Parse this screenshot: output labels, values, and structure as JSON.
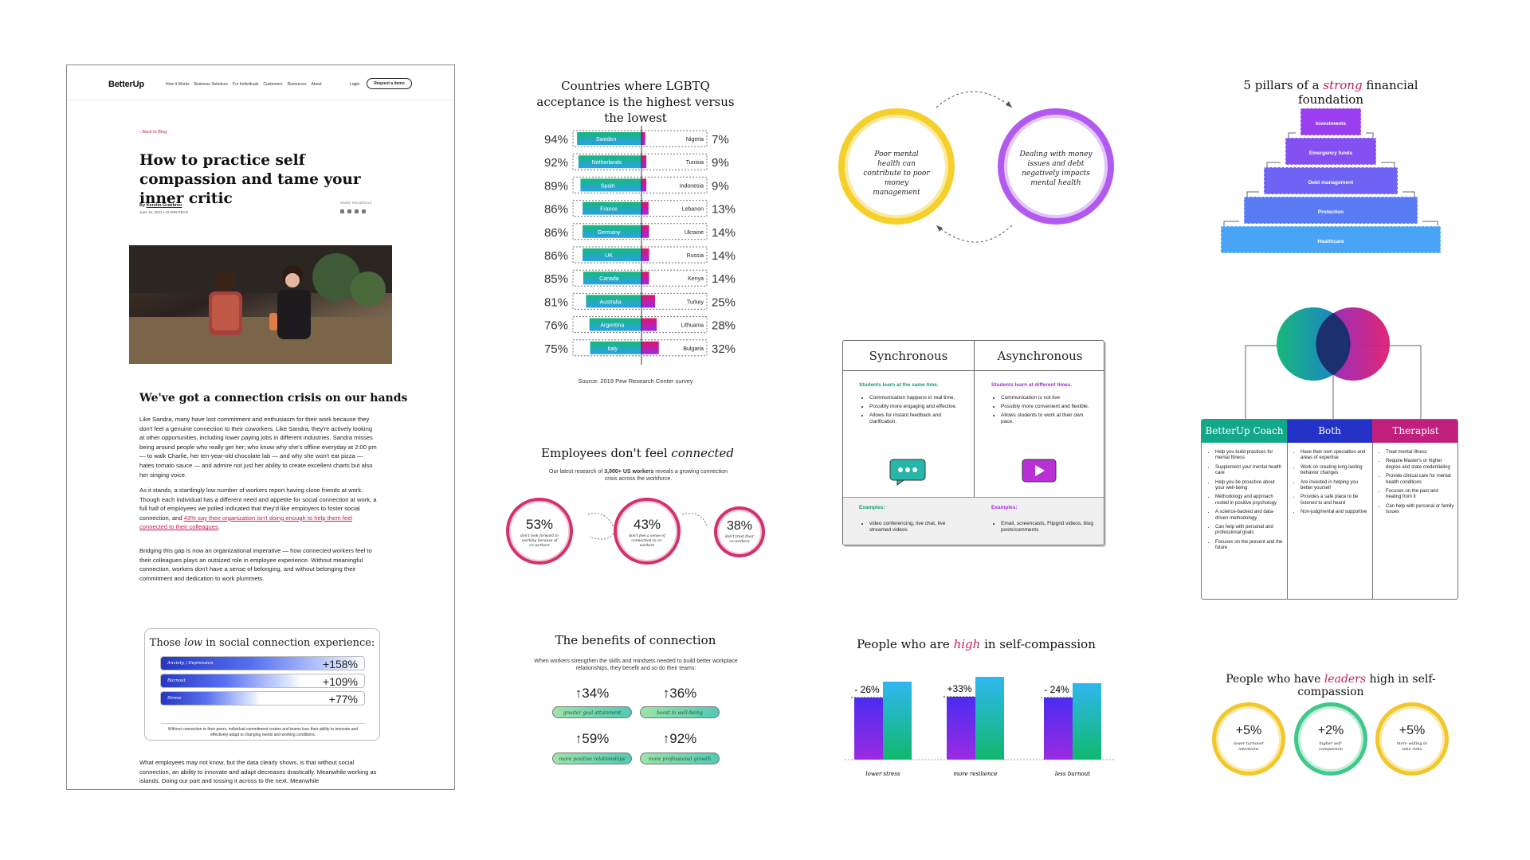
{
  "article": {
    "logo": "BetterUp",
    "nav": [
      "How It Works",
      "Business Solutions",
      "For Individuals",
      "Customers",
      "Resources",
      "About"
    ],
    "login": "Login",
    "demo_button": "Request a demo",
    "back_link": "Back to Blog",
    "title": "How to practice self compassion and tame your inner critic",
    "byline_prefix": "By",
    "author": "Kerstin Graebner",
    "date": "June 16, 2021 • 22 MIN READ",
    "share_label": "SHARE THIS ARTICLE",
    "heading": "We've got a connection crisis on our hands",
    "p1": "Like Sandra, many have lost commitment and enthusiasm for their work because they don't feel a genuine connection to their coworkers. Like Sandra, they're actively looking at other opportunities, including lower paying jobs in different industries. Sandra misses being around people who really get her; who know why she's offline everyday at 2:00 pm — to walk Charlie, her ten-year-old chocolate lab — and why she won't eat pizza — hates tomato sauce — and admire not just her ability to create excellent charts but also her singing voice.",
    "p2_pre": "As it stands, a startlingly low number of workers report having close friends at work. Though each individual has a different need and appetite for social connection at work, a full half of employees we polled indicated that they'd like employers to foster social connection, and ",
    "p2_link": "43% say their organization isn't doing enough to help them feel connected to their colleagues",
    "p2_post": ".",
    "p3": "Bridging this gap is now an organizational imperative — how connected workers feel to their colleagues plays an outsized role in employee experience. Without meaningful connection, workers don't have a sense of belonging, and without belonging their commitment and dedication to work plummets.",
    "callout": {
      "title_pre": "Those ",
      "title_em": "low",
      "title_post": " in social connection experience:",
      "rows": [
        {
          "label": "Anxiety / Depression",
          "value": "+158%",
          "level": 1.0
        },
        {
          "label": "Burnout",
          "value": "+109%",
          "level": 0.69
        },
        {
          "label": "Stress",
          "value": "+77%",
          "level": 0.49
        }
      ],
      "note": "Without connection to their peers, individual commitment craters and teams lose their ability to innovate and effectively adapt to changing needs and working conditions."
    },
    "p4": "What employees may not know, but the data clearly shows, is that without social connection, an ability to innovate and adapt decreases drastically. Meanwhile working as islands. Doing our part and tossing it across to the next. Meanwhile"
  },
  "lgbtq": {
    "title": "Countries where LGBTQ acceptance is the highest versus the lowest",
    "source": "Source: 2019 Pew Research Center survey",
    "rows": [
      {
        "high_country": "Sweden",
        "high": "94%",
        "high_value": 94,
        "low_country": "Nigeria",
        "low": "7%",
        "low_value": 7
      },
      {
        "high_country": "Netherlands",
        "high": "92%",
        "high_value": 92,
        "low_country": "Tunisia",
        "low": "9%",
        "low_value": 9
      },
      {
        "high_country": "Spain",
        "high": "89%",
        "high_value": 89,
        "low_country": "Indonesia",
        "low": "9%",
        "low_value": 9
      },
      {
        "high_country": "France",
        "high": "86%",
        "high_value": 86,
        "low_country": "Lebanon",
        "low": "13%",
        "low_value": 13
      },
      {
        "high_country": "Germany",
        "high": "86%",
        "high_value": 86,
        "low_country": "Ukraine",
        "low": "14%",
        "low_value": 14
      },
      {
        "high_country": "UK",
        "high": "86%",
        "high_value": 86,
        "low_country": "Russia",
        "low": "14%",
        "low_value": 14
      },
      {
        "high_country": "Canada",
        "high": "85%",
        "high_value": 85,
        "low_country": "Kenya",
        "low": "14%",
        "low_value": 14
      },
      {
        "high_country": "Australia",
        "high": "81%",
        "high_value": 81,
        "low_country": "Turkey",
        "low": "25%",
        "low_value": 25
      },
      {
        "high_country": "Argentina",
        "high": "76%",
        "high_value": 76,
        "low_country": "Lithuania",
        "low": "28%",
        "low_value": 28
      },
      {
        "high_country": "Italy",
        "high": "75%",
        "high_value": 75,
        "low_country": "Bulgaria",
        "low": "32%",
        "low_value": 32
      }
    ]
  },
  "employees": {
    "title_pre": "Employees don't feel ",
    "title_em": "connected",
    "subtitle_pre": "Our latest research of ",
    "subtitle_bold": "3,000+ US workers",
    "subtitle_post": " reveals a growing connection crisis across the workforce.",
    "stats": [
      {
        "value": "53%",
        "label": "don't look forward to working because of co-workers"
      },
      {
        "value": "43%",
        "label": "don't feel a sense of connection to co-workers"
      },
      {
        "value": "38%",
        "label": "don't trust their co-workers"
      }
    ]
  },
  "benefits": {
    "title": "The benefits of connection",
    "subtitle": "When workers strengthen the skills and mindsets needed to build better workplace relationships, they benefit and so do their teams:",
    "items": [
      {
        "value": "↑34%",
        "label": "greater goal attainment"
      },
      {
        "value": "↑36%",
        "label": "boost in well-being"
      },
      {
        "value": "↑59%",
        "label": "more positive relationships"
      },
      {
        "value": "↑92%",
        "label": "more professional growth"
      }
    ]
  },
  "cycle": {
    "left": "Poor mental health can contribute to poor money management",
    "right": "Dealing with money issues and debt negatively impacts mental health"
  },
  "sync": {
    "sync_title": "Synchronous",
    "async_title": "Asynchronous",
    "sync_head": "Students learn at the same time.",
    "async_head": "Students learn at different times.",
    "sync_items": [
      "Communication happens in real time.",
      "Possibly more engaging and effective.",
      "Allows for instant feedback and clarification."
    ],
    "async_items": [
      "Communication is not live",
      "Possibly more convenient and flexible.",
      "Allows students to work at their own pace."
    ],
    "examples_label": "Examples:",
    "sync_examples": "video conferencing, live chat, live streamed videos",
    "async_examples": "Email, screencasts, Flipgrid videos, blog posts/comments"
  },
  "selfcomp": {
    "title_pre": "People who are ",
    "title_em": "high",
    "title_post": " in self-compassion",
    "groups": [
      {
        "label": "lower stress",
        "change": "- 26%"
      },
      {
        "label": "more resilience",
        "change": "+33%"
      },
      {
        "label": "less burnout",
        "change": "- 24%"
      }
    ]
  },
  "pillars": {
    "title_pre": "5 pillars of a ",
    "title_em": "strong",
    "title_post": " financial foundation",
    "levels": [
      "Investments",
      "Emergency funds",
      "Debt management",
      "Protection",
      "Healthcare"
    ]
  },
  "venn": {
    "columns": [
      {
        "title": "BetterUp Coach",
        "items": [
          "Help you build practices for mental fitness",
          "Supplement your mental health care",
          "Help you be proactive about your well-being",
          "Methodology and approach rooted in positive psychology",
          "A science-backed and data-driven methodology",
          "Can help with personal and professional goals",
          "Focuses on the present and the future"
        ]
      },
      {
        "title": "Both",
        "items": [
          "Have their own specialties and areas of expertise",
          "Work on creating long-lasting behavior changes",
          "Are invested in helping you better yourself",
          "Provides a safe place to be listened to and heard",
          "Non-judgmental and supportive"
        ]
      },
      {
        "title": "Therapist",
        "items": [
          "Treat mental illness",
          "Require Master's or higher degree and state credentialing",
          "Provide clinical care for mental health conditions",
          "Focuses on the past and healing from it",
          "Can help with personal or family issues"
        ]
      }
    ]
  },
  "leaders": {
    "title_pre": "People who have ",
    "title_em": "leaders",
    "title_post": " high in self-compassion",
    "stats": [
      {
        "value": "+5%",
        "label": "lower turnover intentions"
      },
      {
        "value": "+2%",
        "label": "higher self-compassion"
      },
      {
        "value": "+5%",
        "label": "more willing to take risks"
      }
    ]
  },
  "colors": {
    "accent": "#c01d5e",
    "teal": "#1fb88a",
    "blue": "#2c9fe8",
    "purple": "#8b2be0"
  }
}
